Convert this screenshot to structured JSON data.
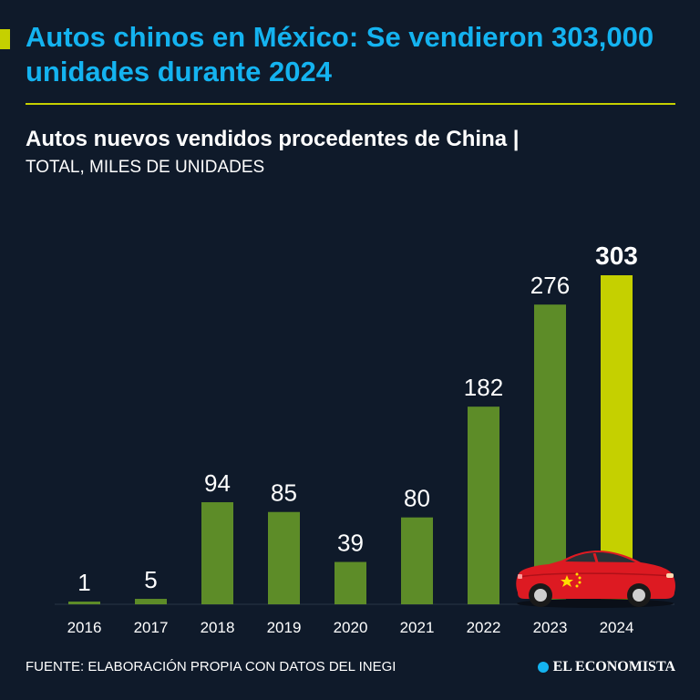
{
  "header": {
    "title": "Autos chinos en México: Se vendieron 303,000 unidades durante 2024",
    "subtitle": "Autos nuevos vendidos procedentes de China |",
    "units": "TOTAL, MILES DE UNIDADES"
  },
  "footer": {
    "source": "FUENTE: ELABORACIÓN PROPIA CON DATOS DEL INEGI",
    "brand": "EL ECONOMISTA"
  },
  "colors": {
    "background": "#0f1a2a",
    "title": "#14b3f0",
    "accent": "#c5d000",
    "bar": "#5d8c28",
    "highlight_bar": "#c5d000",
    "text": "#ffffff"
  },
  "chart_data": {
    "type": "bar",
    "title": "Autos nuevos vendidos procedentes de China",
    "ylabel": "TOTAL, MILES DE UNIDADES",
    "xlabel": "",
    "categories": [
      "2016",
      "2017",
      "2018",
      "2019",
      "2020",
      "2021",
      "2022",
      "2023",
      "2024"
    ],
    "values": [
      1,
      5,
      94,
      85,
      39,
      80,
      182,
      276,
      303
    ],
    "highlight": "2024",
    "ylim": [
      0,
      303
    ],
    "grid": false,
    "legend": "none"
  }
}
